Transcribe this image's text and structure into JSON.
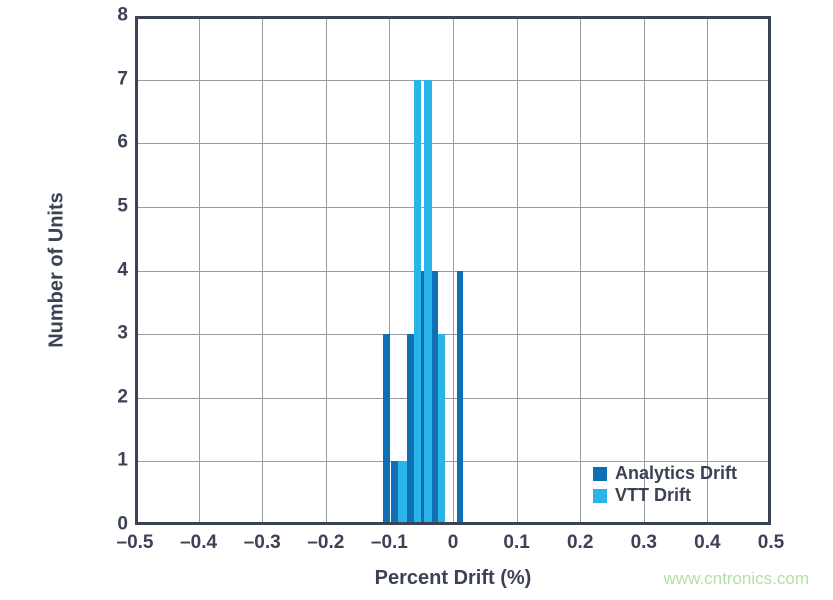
{
  "page": {
    "watermark": "www.cntronics.com",
    "watermark_color": "#b5dfa4",
    "background": "#ffffff"
  },
  "chart_data": {
    "type": "bar",
    "subtype": "histogram",
    "title": "",
    "xlabel": "Percent Drift (%)",
    "ylabel": "Number of Units",
    "xlim": [
      -0.5,
      0.5
    ],
    "ylim": [
      0,
      8
    ],
    "grid": true,
    "grid_color": "#9b9ba3",
    "frame_color": "#3a4254",
    "text_color": "#3a4254",
    "x_ticks": [
      {
        "value": -0.5,
        "label": "–0.5"
      },
      {
        "value": -0.4,
        "label": "–0.4"
      },
      {
        "value": -0.3,
        "label": "–0.3"
      },
      {
        "value": -0.2,
        "label": "–0.2"
      },
      {
        "value": -0.1,
        "label": "–0.1"
      },
      {
        "value": 0,
        "label": "0"
      },
      {
        "value": 0.1,
        "label": "0.1"
      },
      {
        "value": 0.2,
        "label": "0.2"
      },
      {
        "value": 0.3,
        "label": "0.3"
      },
      {
        "value": 0.4,
        "label": "0.4"
      },
      {
        "value": 0.5,
        "label": "0.5"
      }
    ],
    "y_ticks": [
      {
        "value": 0,
        "label": "0"
      },
      {
        "value": 1,
        "label": "1"
      },
      {
        "value": 2,
        "label": "2"
      },
      {
        "value": 3,
        "label": "3"
      },
      {
        "value": 4,
        "label": "4"
      },
      {
        "value": 5,
        "label": "5"
      },
      {
        "value": 6,
        "label": "6"
      },
      {
        "value": 7,
        "label": "7"
      },
      {
        "value": 8,
        "label": "8"
      }
    ],
    "legend": {
      "position": "lower right",
      "items": [
        {
          "name": "Analytics Drift",
          "color": "#0e6fb5"
        },
        {
          "name": "VTT Drift",
          "color": "#29b5e8"
        }
      ]
    },
    "series": [
      {
        "name": "Analytics Drift",
        "color": "#0e6fb5",
        "bars": [
          {
            "x0": -0.11,
            "x1": -0.099,
            "count": 3
          },
          {
            "x0": -0.097,
            "x1": -0.087,
            "count": 1
          },
          {
            "x0": -0.072,
            "x1": -0.061,
            "count": 3
          },
          {
            "x0": -0.05,
            "x1": -0.045,
            "count": 4
          },
          {
            "x0": -0.033,
            "x1": -0.024,
            "count": 4
          },
          {
            "x0": 0.006,
            "x1": 0.016,
            "count": 4
          }
        ]
      },
      {
        "name": "VTT Drift",
        "color": "#29b5e8",
        "bars": [
          {
            "x0": -0.087,
            "x1": -0.073,
            "count": 1
          },
          {
            "x0": -0.061,
            "x1": -0.05,
            "count": 7
          },
          {
            "x0": -0.045,
            "x1": -0.033,
            "count": 7
          },
          {
            "x0": -0.024,
            "x1": -0.013,
            "count": 3
          }
        ]
      }
    ]
  }
}
